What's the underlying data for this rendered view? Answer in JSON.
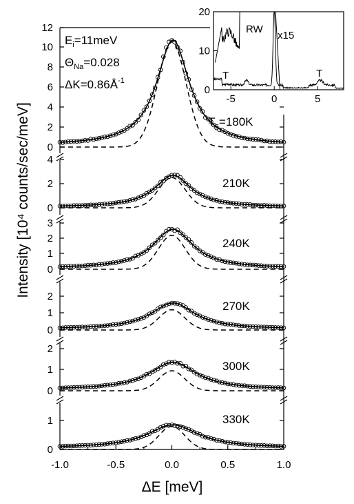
{
  "chart_data": {
    "type": "line",
    "xlabel": "ΔE [meV]",
    "ylabel": "Intensity [10⁴ counts/sec/meV]",
    "xlim": [
      -1.0,
      1.0
    ],
    "x_ticks": [
      "-1.0",
      "-0.5",
      "0.0",
      "0.5",
      "1.0"
    ],
    "legend": "none",
    "grid": false,
    "conditions": {
      "ei": "E",
      "ei_sub": "i",
      "ei_val": "=11meV",
      "theta": "Θ",
      "theta_sub": "Na",
      "theta_val": "=0.028",
      "dk": "ΔK=0.86Å",
      "dk_sup": "-1"
    },
    "panels": [
      {
        "label": "T",
        "label_sub": "s",
        "label_val": "=180K",
        "ylim": [
          0,
          12
        ],
        "yticks": [
          "0",
          "2",
          "4",
          "6",
          "8",
          "10",
          "12"
        ],
        "peak": 10.6,
        "fwhm": 0.36,
        "bg": 0.15,
        "dash_fwhm": 0.3,
        "dash_peak": 10.6
      },
      {
        "label": "210K",
        "ylim": [
          0,
          4
        ],
        "yticks": [
          "0",
          "2",
          "4"
        ],
        "peak": 2.65,
        "fwhm": 0.4,
        "bg": 0.05,
        "dash_fwhm": 0.28,
        "dash_peak": 2.5
      },
      {
        "label": "240K",
        "ylim": [
          0,
          3
        ],
        "yticks": [
          "0",
          "1",
          "2",
          "3"
        ],
        "peak": 2.55,
        "fwhm": 0.44,
        "bg": 0.05,
        "dash_fwhm": 0.28,
        "dash_peak": 2.2
      },
      {
        "label": "270K",
        "ylim": [
          0,
          3
        ],
        "yticks": [
          "0",
          "1",
          "2"
        ],
        "peak": 1.55,
        "fwhm": 0.48,
        "bg": 0.05,
        "dash_fwhm": 0.27,
        "dash_peak": 1.2
      },
      {
        "label": "300K",
        "ylim": [
          0,
          3
        ],
        "yticks": [
          "0",
          "1",
          "2"
        ],
        "peak": 1.3,
        "fwhm": 0.52,
        "bg": 0.05,
        "dash_fwhm": 0.27,
        "dash_peak": 0.95
      },
      {
        "label": "330K",
        "ylim": [
          0,
          2
        ],
        "yticks": [
          "0",
          "1"
        ],
        "peak": 0.8,
        "fwhm": 0.56,
        "bg": 0.05,
        "dash_fwhm": 0.27,
        "dash_peak": 0.8
      }
    ],
    "inset": {
      "xlim": [
        -7,
        8
      ],
      "ylim": [
        0,
        20
      ],
      "x_ticks": [
        "-5",
        "0",
        "5"
      ],
      "y_ticks": [
        "0",
        "10",
        "20"
      ],
      "labels": {
        "rw": "RW",
        "scale": "x15",
        "t_left": "T",
        "t_right": "T"
      }
    }
  }
}
